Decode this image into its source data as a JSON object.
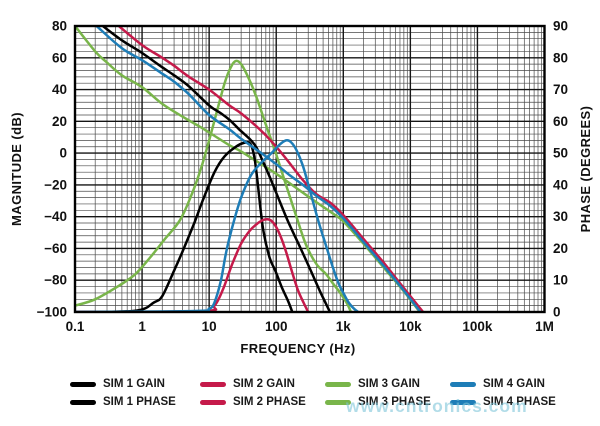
{
  "watermark": "www.cntronics.com",
  "legend": {
    "items": [
      {
        "label": "SIM 1 GAIN",
        "color": "#000000",
        "row": 0,
        "col": 0
      },
      {
        "label": "SIM 2 GAIN",
        "color": "#C51A4A",
        "row": 0,
        "col": 1
      },
      {
        "label": "SIM 3 GAIN",
        "color": "#79B54A",
        "row": 0,
        "col": 2
      },
      {
        "label": "SIM 4 GAIN",
        "color": "#1E7DB7",
        "row": 0,
        "col": 3
      },
      {
        "label": "SIM 1 PHASE",
        "color": "#000000",
        "row": 1,
        "col": 0
      },
      {
        "label": "SIM 2 PHASE",
        "color": "#C51A4A",
        "row": 1,
        "col": 1
      },
      {
        "label": "SIM 3 PHASE",
        "color": "#79B54A",
        "row": 1,
        "col": 2
      },
      {
        "label": "SIM 4 PHASE",
        "color": "#1E7DB7",
        "row": 1,
        "col": 3
      }
    ]
  },
  "chart_data": {
    "type": "line",
    "title": "",
    "xlabel": "FREQUENCY (Hz)",
    "ylabel_left": "MAGNITUDE (dB)",
    "ylabel_right": "PHASE (DEGREES)",
    "x_axis": {
      "scale": "log",
      "min": 0.1,
      "max": 1000000,
      "tick_labels": [
        "0.1",
        "1",
        "10",
        "100",
        "1k",
        "10k",
        "100k",
        "1M"
      ],
      "grid": "log-minor"
    },
    "y_left_axis": {
      "min": -100,
      "max": 80,
      "major_step": 20,
      "minor_step": 4,
      "tick_labels": [
        "80",
        "60",
        "40",
        "20",
        "0",
        "−20",
        "−40",
        "−60",
        "−80",
        "−100"
      ]
    },
    "y_right_axis": {
      "min": 0,
      "max": 90,
      "major_step": 10,
      "tick_labels": [
        "90",
        "80",
        "70",
        "60",
        "50",
        "40",
        "30",
        "20",
        "10",
        "0"
      ]
    },
    "grid": "on",
    "legend_position": "bottom",
    "series": [
      {
        "name": "SIM 3 GAIN",
        "color": "#79B54A",
        "axis": "left",
        "unit": "dB",
        "points": [
          [
            0.1,
            80
          ],
          [
            0.2,
            64
          ],
          [
            0.3,
            57
          ],
          [
            0.5,
            49
          ],
          [
            1,
            41.5
          ],
          [
            2,
            31
          ],
          [
            4,
            23
          ],
          [
            7,
            17
          ],
          [
            10,
            13
          ],
          [
            20,
            5
          ],
          [
            30,
            1
          ],
          [
            60,
            -7
          ],
          [
            100,
            -13
          ],
          [
            200,
            -22
          ],
          [
            400,
            -31
          ],
          [
            700,
            -38
          ],
          [
            1000,
            -43
          ],
          [
            2000,
            -57
          ],
          [
            4000,
            -72
          ],
          [
            8000,
            -87
          ],
          [
            15000,
            -102
          ]
        ]
      },
      {
        "name": "SIM 3 PHASE",
        "color": "#79B54A",
        "axis": "right",
        "unit": "deg",
        "points": [
          [
            0.1,
            2
          ],
          [
            0.2,
            4
          ],
          [
            0.47,
            8.5
          ],
          [
            0.8,
            12
          ],
          [
            1.3,
            17
          ],
          [
            2.2,
            23
          ],
          [
            3.7,
            29
          ],
          [
            5.5,
            37
          ],
          [
            7.5,
            45
          ],
          [
            10,
            54
          ],
          [
            13,
            63
          ],
          [
            17,
            72
          ],
          [
            21,
            77
          ],
          [
            25,
            79
          ],
          [
            30,
            78
          ],
          [
            38,
            74
          ],
          [
            50,
            68
          ],
          [
            70,
            59
          ],
          [
            95,
            51
          ],
          [
            140,
            40
          ],
          [
            200,
            30
          ],
          [
            280,
            21
          ],
          [
            400,
            15
          ],
          [
            550,
            12
          ],
          [
            700,
            9
          ],
          [
            900,
            6
          ],
          [
            1150,
            2.5
          ],
          [
            1300,
            0
          ]
        ]
      },
      {
        "name": "SIM 1 GAIN",
        "color": "#000000",
        "axis": "left",
        "unit": "dB",
        "points": [
          [
            0.26,
            80
          ],
          [
            0.5,
            71
          ],
          [
            1,
            63
          ],
          [
            2,
            54
          ],
          [
            3,
            49
          ],
          [
            5,
            42
          ],
          [
            10,
            30
          ],
          [
            15,
            25
          ],
          [
            20,
            21
          ],
          [
            28,
            15
          ],
          [
            40,
            9
          ],
          [
            50,
            4
          ],
          [
            60,
            -3
          ],
          [
            80,
            -15
          ],
          [
            100,
            -25
          ],
          [
            150,
            -43
          ],
          [
            220,
            -58
          ],
          [
            320,
            -73
          ],
          [
            450,
            -87
          ],
          [
            650,
            -101
          ]
        ]
      },
      {
        "name": "SIM 1 PHASE",
        "color": "#000000",
        "axis": "right",
        "unit": "deg",
        "points": [
          [
            0.1,
            0
          ],
          [
            0.8,
            0.4
          ],
          [
            1.5,
            3
          ],
          [
            2,
            5
          ],
          [
            3,
            13
          ],
          [
            4,
            19
          ],
          [
            6,
            28
          ],
          [
            8,
            35
          ],
          [
            12,
            44
          ],
          [
            17,
            49
          ],
          [
            25,
            52
          ],
          [
            33,
            53.2
          ],
          [
            41,
            53
          ],
          [
            47,
            49
          ],
          [
            52,
            42
          ],
          [
            58,
            33
          ],
          [
            65,
            25
          ],
          [
            80,
            17
          ],
          [
            97,
            13
          ],
          [
            120,
            8
          ],
          [
            150,
            3.5
          ],
          [
            174,
            0
          ]
        ]
      },
      {
        "name": "SIM 2 GAIN",
        "color": "#C51A4A",
        "axis": "left",
        "unit": "dB",
        "points": [
          [
            0.45,
            80
          ],
          [
            1,
            68
          ],
          [
            2,
            60
          ],
          [
            3,
            55
          ],
          [
            5,
            48
          ],
          [
            10,
            40
          ],
          [
            20,
            30
          ],
          [
            30,
            25
          ],
          [
            60,
            14
          ],
          [
            100,
            4
          ],
          [
            150,
            -5
          ],
          [
            250,
            -17
          ],
          [
            400,
            -26
          ],
          [
            630,
            -31
          ],
          [
            1000,
            -39
          ],
          [
            2000,
            -54
          ],
          [
            4000,
            -69
          ],
          [
            8000,
            -85
          ],
          [
            15500,
            -100
          ]
        ]
      },
      {
        "name": "SIM 2 PHASE",
        "color": "#C51A4A",
        "axis": "right",
        "unit": "deg",
        "points": [
          [
            0.1,
            0
          ],
          [
            8,
            0.3
          ],
          [
            12,
            2
          ],
          [
            16,
            7
          ],
          [
            22,
            15
          ],
          [
            30,
            21.5
          ],
          [
            40,
            25.5
          ],
          [
            52,
            27.8
          ],
          [
            65,
            29
          ],
          [
            80,
            29
          ],
          [
            95,
            27.5
          ],
          [
            115,
            24
          ],
          [
            140,
            19
          ],
          [
            170,
            13
          ],
          [
            210,
            7
          ],
          [
            255,
            3
          ],
          [
            300,
            0
          ]
        ]
      },
      {
        "name": "SIM 4 GAIN",
        "color": "#1E7DB7",
        "axis": "left",
        "unit": "dB",
        "points": [
          [
            0.21,
            80
          ],
          [
            0.5,
            66
          ],
          [
            1,
            58.5
          ],
          [
            2,
            50
          ],
          [
            3,
            45
          ],
          [
            5,
            37
          ],
          [
            10,
            24
          ],
          [
            20,
            15
          ],
          [
            30,
            9
          ],
          [
            60,
            0
          ],
          [
            100,
            -7
          ],
          [
            160,
            -14
          ],
          [
            250,
            -20
          ],
          [
            400,
            -27
          ],
          [
            630,
            -33
          ],
          [
            1000,
            -41
          ],
          [
            2000,
            -56
          ],
          [
            4000,
            -71
          ],
          [
            8000,
            -86.5
          ],
          [
            15000,
            -101.5
          ]
        ]
      },
      {
        "name": "SIM 4 PHASE",
        "color": "#1E7DB7",
        "axis": "right",
        "unit": "deg",
        "points": [
          [
            0.1,
            0
          ],
          [
            6,
            0.3
          ],
          [
            10,
            1
          ],
          [
            12,
            3
          ],
          [
            15,
            10
          ],
          [
            18,
            19
          ],
          [
            23,
            28
          ],
          [
            30,
            36
          ],
          [
            42,
            43
          ],
          [
            60,
            47
          ],
          [
            85,
            50
          ],
          [
            110,
            52.5
          ],
          [
            140,
            54
          ],
          [
            165,
            53.5
          ],
          [
            200,
            51
          ],
          [
            250,
            46
          ],
          [
            320,
            38
          ],
          [
            420,
            29
          ],
          [
            550,
            21
          ],
          [
            700,
            14
          ],
          [
            850,
            9
          ],
          [
            1000,
            6
          ],
          [
            1200,
            3
          ],
          [
            1450,
            1
          ],
          [
            1670,
            0
          ]
        ]
      }
    ]
  }
}
